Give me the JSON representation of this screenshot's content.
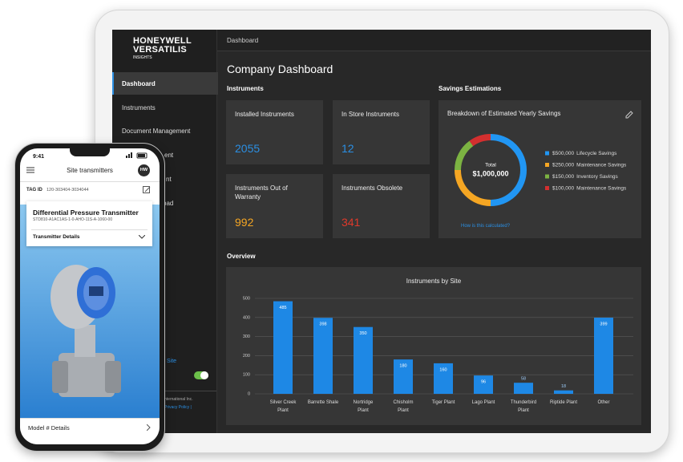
{
  "tablet": {
    "sidebar": {
      "logo": [
        "HONEYWELL",
        "VERSATILIS",
        "INSIGHTS"
      ],
      "nav": [
        "Dashboard",
        "Instruments",
        "Document Management",
        "ent",
        "nt",
        "oad"
      ],
      "link": "Site",
      "footer": [
        "nternational Inc.",
        "Privacy Policy |"
      ]
    },
    "header": "Dashboard",
    "title": "Company Dashboard",
    "instruments": {
      "heading": "Instruments",
      "cards": [
        {
          "label": "Installed Instruments",
          "value": 2055,
          "color": "#2b8fe3"
        },
        {
          "label": "In Store Instruments",
          "value": 12,
          "color": "#2b8fe3"
        },
        {
          "label": "Instruments Out of Warranty",
          "value": 992,
          "color": "#f5a623"
        },
        {
          "label": "Instruments Obsolete",
          "value": 341,
          "color": "#e0392b"
        }
      ]
    },
    "savings": {
      "heading": "Savings Estimations",
      "card_title": "Breakdown of Estimated Yearly Savings",
      "total_label": "Total",
      "total": "$1,000,000",
      "link": "How is this calculated?",
      "chart": {
        "type": "donut",
        "categories": [
          "Lifecycle Savings",
          "Maintenance Savings",
          "Inventory Savings",
          "Maintenance Savings"
        ],
        "values": [
          500000,
          250000,
          150000,
          100000
        ],
        "value_labels": [
          "$500,000",
          "$250,000",
          "$150,000",
          "$100,000"
        ],
        "colors": [
          "#2196f3",
          "#f5a623",
          "#7cb342",
          "#d32f2f"
        ]
      }
    },
    "overview": {
      "heading": "Overview",
      "chart": {
        "type": "bar",
        "title": "Instruments by Site",
        "categories": [
          "Silver Creek Plant",
          "Barrette Shale",
          "Nortridge Plant",
          "Chisholm Plant",
          "Tiger Plant",
          "Lago Plant",
          "Thunderbird Plant",
          "Riptide Plant",
          "Other"
        ],
        "values": [
          485,
          398,
          350,
          180,
          160,
          96,
          58,
          18,
          399
        ],
        "color": "#1e88e5",
        "ylim": [
          0,
          500
        ],
        "yticks": [
          0,
          100,
          200,
          300,
          400,
          500
        ],
        "grid": true
      }
    }
  },
  "phone": {
    "time": "9:41",
    "header": "Site transmitters",
    "avatar": "HW",
    "tag_label": "TAG ID",
    "tag_value": "120-303404-3034044",
    "card_title": "Differential Pressure Transmitter",
    "card_code": "STD810-A1AC1AS-1-0-AHO-11S-A-1060-00",
    "card_details": "Transmitter Details",
    "footer": "Model # Details"
  }
}
